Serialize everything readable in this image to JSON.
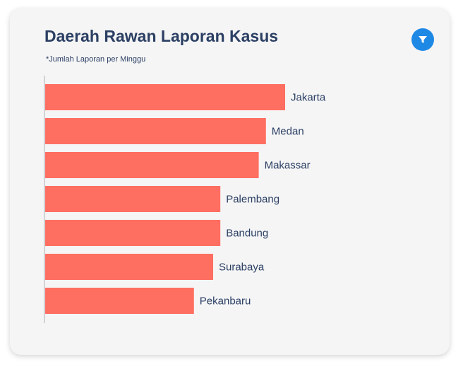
{
  "header": {
    "title": "Daerah Rawan Laporan Kasus",
    "subtitle": "*Jumlah Laporan per Minggu"
  },
  "icons": {
    "filter": "filter-icon"
  },
  "colors": {
    "bar": "#ff6f61",
    "title": "#2b3f63",
    "filter_button": "#1e88e5"
  },
  "chart_data": {
    "type": "bar",
    "orientation": "horizontal",
    "categories": [
      "Jakarta",
      "Medan",
      "Makassar",
      "Palembang",
      "Bandung",
      "Surabaya",
      "Pekanbaru"
    ],
    "values": [
      100,
      92,
      89,
      73,
      73,
      70,
      62
    ],
    "xlim": [
      0,
      100
    ],
    "grid": false,
    "axis_ticks": false
  }
}
